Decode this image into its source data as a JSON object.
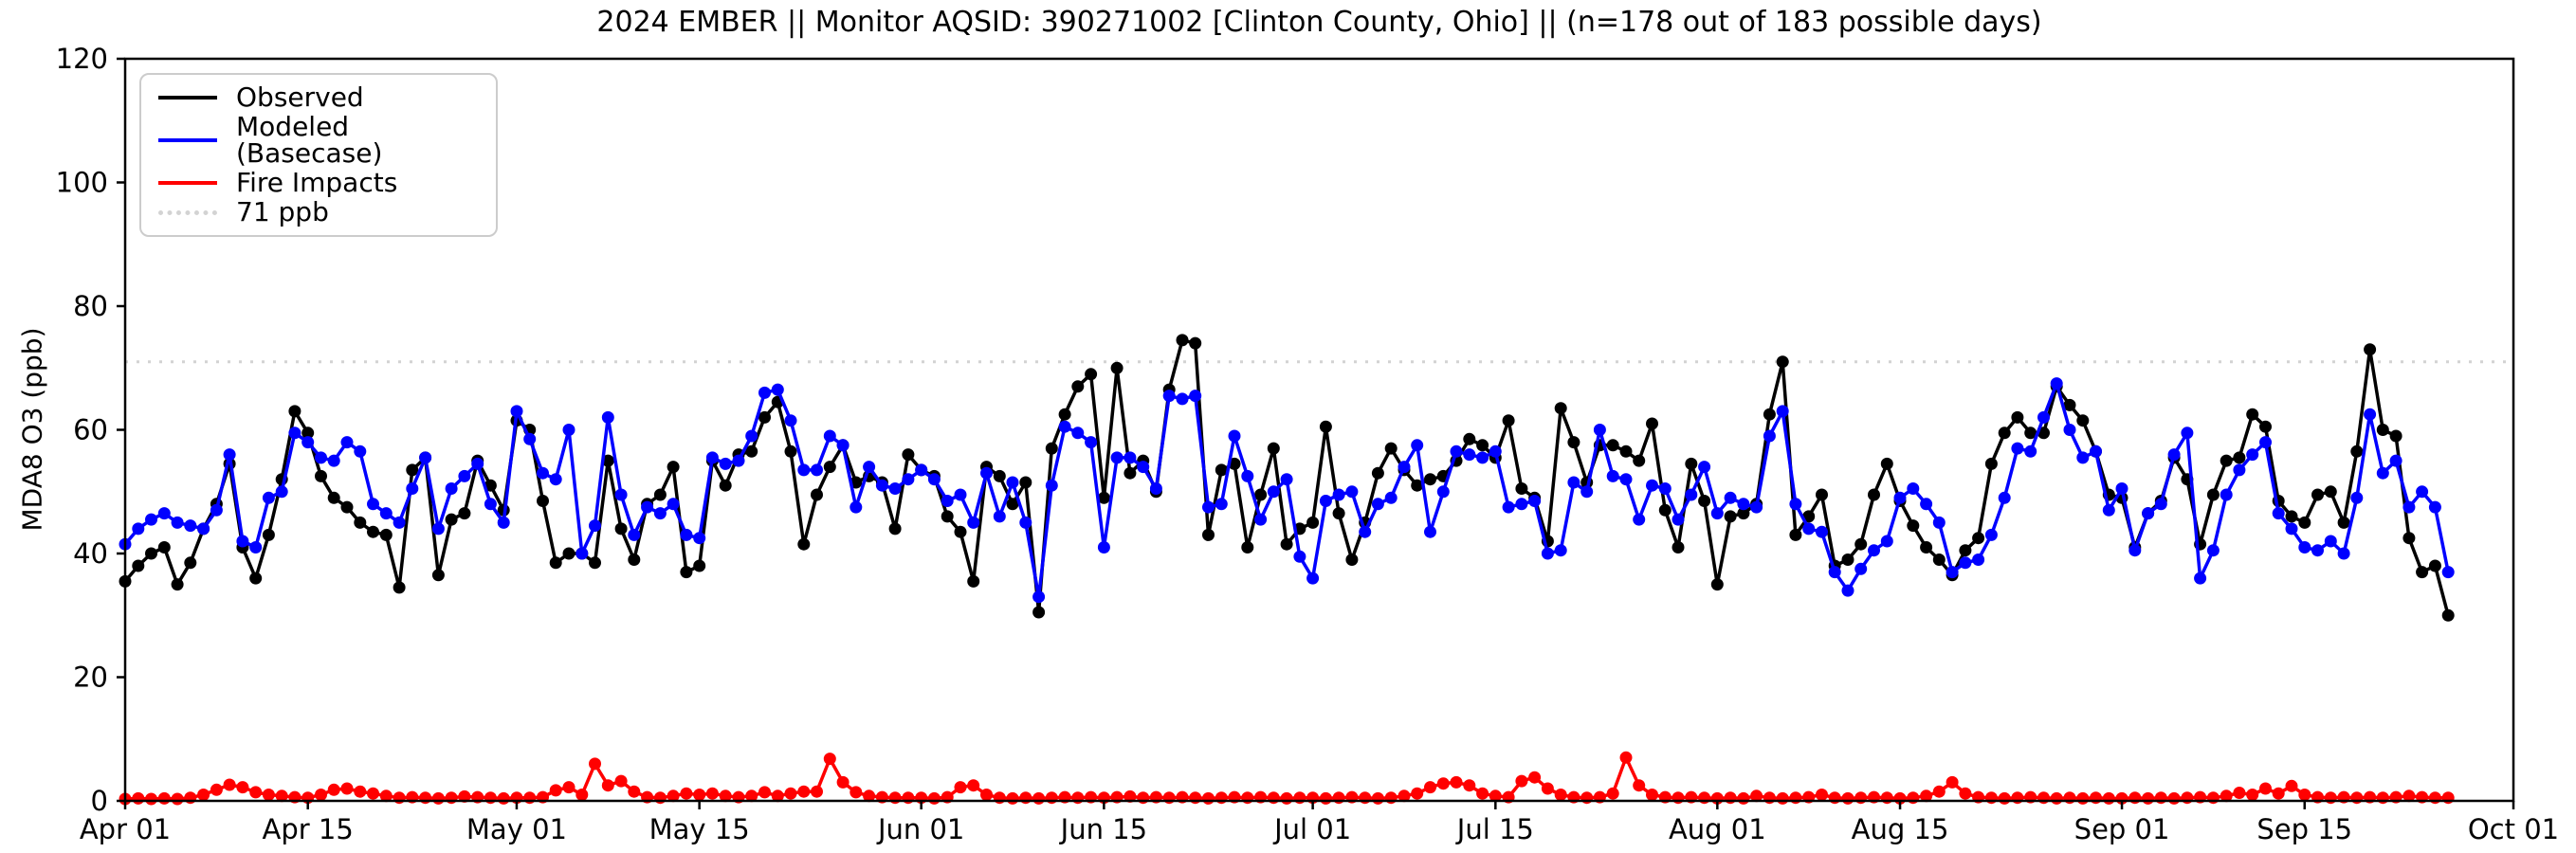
{
  "colors": {
    "observed": "#000000",
    "modeled": "#0000ff",
    "fire": "#ff0000",
    "reference": "#d3d3d3",
    "legend_border": "#cccccc"
  },
  "axes": {
    "y_label": "MDA8 O3 (ppb)",
    "y_ticks": [
      0,
      20,
      40,
      60,
      80,
      100,
      120
    ],
    "y_range": [
      0,
      120
    ],
    "x_tick_labels": [
      "Apr 01",
      "Apr 15",
      "May 01",
      "May 15",
      "Jun 01",
      "Jun 15",
      "Jul 01",
      "Jul 15",
      "Aug 01",
      "Aug 15",
      "Sep 01",
      "Sep 15",
      "Oct 01"
    ],
    "x_tick_days": [
      0,
      14,
      30,
      44,
      61,
      75,
      91,
      105,
      122,
      136,
      153,
      167,
      183
    ],
    "x_total_days": 183
  },
  "legend": {
    "items": [
      {
        "label": "Observed",
        "color": "#000000",
        "style": "solid"
      },
      {
        "label": "Modeled (Basecase)",
        "color": "#0000ff",
        "style": "solid"
      },
      {
        "label": "Fire Impacts",
        "color": "#ff0000",
        "style": "solid"
      },
      {
        "label": "71 ppb",
        "color": "#d3d3d3",
        "style": "dotted"
      }
    ]
  },
  "chart_data": {
    "type": "line",
    "title": "2024 EMBER || Monitor AQSID: 390271002 [Clinton County, Ohio] || (n=178 out of 183 possible days)",
    "xlabel": "",
    "ylabel": "MDA8 O3 (ppb)",
    "ylim": [
      0,
      120
    ],
    "grid": false,
    "legend_position": "upper left",
    "reference_line": {
      "label": "71 ppb",
      "value": 71,
      "color": "#d3d3d3",
      "style": "dotted"
    },
    "x_dates": [
      "4/1",
      "4/2",
      "4/3",
      "4/4",
      "4/5",
      "4/6",
      "4/7",
      "4/8",
      "4/9",
      "4/10",
      "4/11",
      "4/12",
      "4/13",
      "4/14",
      "4/15",
      "4/16",
      "4/17",
      "4/18",
      "4/19",
      "4/20",
      "4/21",
      "4/22",
      "4/23",
      "4/24",
      "4/25",
      "4/26",
      "4/27",
      "4/28",
      "4/29",
      "4/30",
      "5/1",
      "5/2",
      "5/3",
      "5/4",
      "5/5",
      "5/6",
      "5/7",
      "5/8",
      "5/9",
      "5/10",
      "5/11",
      "5/12",
      "5/13",
      "5/14",
      "5/15",
      "5/16",
      "5/17",
      "5/18",
      "5/19",
      "5/20",
      "5/21",
      "5/22",
      "5/23",
      "5/24",
      "5/25",
      "5/26",
      "5/27",
      "5/28",
      "5/29",
      "5/30",
      "5/31",
      "6/1",
      "6/2",
      "6/3",
      "6/4",
      "6/5",
      "6/6",
      "6/7",
      "6/8",
      "6/9",
      "6/10",
      "6/11",
      "6/12",
      "6/13",
      "6/14",
      "6/15",
      "6/16",
      "6/17",
      "6/18",
      "6/19",
      "6/20",
      "6/21",
      "6/22",
      "6/23",
      "6/24",
      "6/25",
      "6/26",
      "6/27",
      "6/28",
      "6/29",
      "6/30",
      "7/1",
      "7/2",
      "7/3",
      "7/4",
      "7/5",
      "7/6",
      "7/7",
      "7/8",
      "7/9",
      "7/10",
      "7/11",
      "7/12",
      "7/13",
      "7/14",
      "7/15",
      "7/16",
      "7/17",
      "7/18",
      "7/19",
      "7/20",
      "7/21",
      "7/22",
      "7/23",
      "7/24",
      "7/25",
      "7/26",
      "7/27",
      "7/28",
      "7/29",
      "7/30",
      "7/31",
      "8/1",
      "8/2",
      "8/3",
      "8/4",
      "8/5",
      "8/6",
      "8/7",
      "8/8",
      "8/9",
      "8/10",
      "8/11",
      "8/12",
      "8/13",
      "8/14",
      "8/15",
      "8/16",
      "8/17",
      "8/18",
      "8/19",
      "8/20",
      "8/21",
      "8/22",
      "8/23",
      "8/24",
      "8/25",
      "8/26",
      "8/27",
      "8/28",
      "8/29",
      "8/30",
      "8/31",
      "9/1",
      "9/2",
      "9/3",
      "9/4",
      "9/5",
      "9/6",
      "9/7",
      "9/8",
      "9/9",
      "9/10",
      "9/11",
      "9/12",
      "9/13",
      "9/14",
      "9/15",
      "9/16",
      "9/17",
      "9/18",
      "9/19",
      "9/20",
      "9/21",
      "9/22",
      "9/23",
      "9/24",
      "9/25",
      "9/26"
    ],
    "series": [
      {
        "name": "Observed",
        "color": "#000000",
        "marker": "circle",
        "values": [
          35.5,
          38,
          40,
          41,
          35,
          38.5,
          44,
          48,
          54.5,
          41,
          36,
          43,
          52,
          63,
          59.5,
          52.5,
          49,
          47.5,
          45,
          43.5,
          43,
          34.5,
          53.5,
          55.5,
          36.5,
          45.5,
          46.5,
          55,
          51,
          47,
          61.5,
          60,
          48.5,
          38.5,
          40,
          40,
          38.5,
          55,
          44,
          39,
          48,
          49.5,
          54,
          37,
          38,
          55,
          51,
          56,
          56.5,
          62,
          64.5,
          56.5,
          41.5,
          49.5,
          54,
          57.5,
          51.5,
          52.5,
          51.5,
          44,
          56,
          53.5,
          52.5,
          46,
          43.5,
          35.5,
          54,
          52.5,
          48,
          51.5,
          30.5,
          57,
          62.5,
          67,
          69,
          49,
          70,
          53,
          55,
          50,
          66.5,
          74.5,
          74,
          43,
          53.5,
          54.5,
          41,
          49.5,
          57,
          41.5,
          44,
          45,
          60.5,
          46.5,
          39,
          45,
          53,
          57,
          53.5,
          51,
          52,
          52.5,
          55,
          58.5,
          57.5,
          55.5,
          61.5,
          50.5,
          49,
          42,
          63.5,
          58,
          51.5,
          57.5,
          57.5,
          56.5,
          55,
          61,
          47,
          41,
          54.5,
          48.5,
          35,
          46,
          46.5,
          48,
          62.5,
          71,
          43,
          46,
          49.5,
          38,
          39,
          41.5,
          49.5,
          54.5,
          48.5,
          44.5,
          41,
          39,
          36.5,
          40.5,
          42.5,
          54.5,
          59.5,
          62,
          59.5,
          59.5,
          67,
          64,
          61.5,
          56.5,
          49.5,
          49,
          41,
          46.5,
          48.5,
          55.5,
          52,
          41.5,
          49.5,
          55,
          55.5,
          62.5,
          60.5,
          48.5,
          46,
          45,
          49.5,
          50,
          45,
          56.5,
          73,
          60,
          59,
          42.5,
          37,
          38,
          30
        ]
      },
      {
        "name": "Modeled (Basecase)",
        "color": "#0000ff",
        "marker": "circle",
        "values": [
          41.5,
          44,
          45.5,
          46.5,
          45,
          44.5,
          44,
          47,
          56,
          42,
          41,
          49,
          50,
          59.5,
          58,
          55.5,
          55,
          58,
          56.5,
          48,
          46.5,
          45,
          50.5,
          55.5,
          44,
          50.5,
          52.5,
          54.5,
          48,
          45,
          63,
          58.5,
          53,
          52,
          60,
          40,
          44.5,
          62,
          49.5,
          43,
          47.5,
          46.5,
          48,
          43,
          42.5,
          55.5,
          54.5,
          55,
          59,
          66,
          66.5,
          61.5,
          53.5,
          53.5,
          59,
          57.5,
          47.5,
          54,
          51,
          50.5,
          52,
          53.5,
          52,
          48.5,
          49.5,
          45,
          53,
          46,
          51.5,
          45,
          33,
          51,
          60.5,
          59.5,
          58,
          41,
          55.5,
          55.5,
          54,
          50.5,
          65.5,
          65,
          65.5,
          47.5,
          48,
          59,
          52.5,
          45.5,
          50,
          52,
          39.5,
          36,
          48.5,
          49.5,
          50,
          43.5,
          48,
          49,
          54,
          57.5,
          43.5,
          50,
          56.5,
          56,
          55.5,
          56.5,
          47.5,
          48,
          48.5,
          40,
          40.5,
          51.5,
          50,
          60,
          52.5,
          52,
          45.5,
          51,
          50.5,
          45.5,
          49.5,
          54,
          46.5,
          49,
          48,
          47.5,
          59,
          63,
          48,
          44,
          43.5,
          37,
          34,
          37.5,
          40.5,
          42,
          49,
          50.5,
          48,
          45,
          37,
          38.5,
          39,
          43,
          49,
          57,
          56.5,
          62,
          67.5,
          60,
          55.5,
          56.5,
          47,
          50.5,
          40.5,
          46.5,
          48,
          56,
          59.5,
          36,
          40.5,
          49.5,
          53.5,
          56,
          58,
          46.5,
          44,
          41,
          40.5,
          42,
          40,
          49,
          62.5,
          53,
          55,
          47.5,
          50,
          47.5,
          37
        ]
      },
      {
        "name": "Fire Impacts",
        "color": "#ff0000",
        "marker": "circle",
        "values": [
          0.3,
          0.4,
          0.3,
          0.4,
          0.3,
          0.5,
          1,
          1.8,
          2.6,
          2.2,
          1.4,
          1,
          0.8,
          0.6,
          0.5,
          1,
          1.8,
          2,
          1.5,
          1.2,
          0.8,
          0.5,
          0.6,
          0.5,
          0.4,
          0.5,
          0.7,
          0.6,
          0.5,
          0.4,
          0.5,
          0.5,
          0.6,
          1.7,
          2.2,
          1,
          6,
          2.5,
          3.2,
          1.5,
          0.6,
          0.5,
          0.8,
          1.2,
          1,
          1.2,
          0.8,
          0.6,
          0.8,
          1.4,
          0.8,
          1.2,
          1.5,
          1.5,
          6.8,
          3,
          1.4,
          0.8,
          0.6,
          0.5,
          0.5,
          0.5,
          0.4,
          0.6,
          2.2,
          2.5,
          1,
          0.5,
          0.4,
          0.5,
          0.4,
          0.5,
          0.6,
          0.5,
          0.6,
          0.5,
          0.6,
          0.7,
          0.5,
          0.6,
          0.5,
          0.6,
          0.5,
          0.4,
          0.5,
          0.6,
          0.5,
          0.6,
          0.5,
          0.4,
          0.5,
          0.5,
          0.4,
          0.5,
          0.6,
          0.5,
          0.4,
          0.5,
          0.8,
          1.2,
          2.2,
          2.8,
          3,
          2.5,
          1.2,
          0.8,
          0.6,
          3.2,
          3.8,
          2,
          1,
          0.6,
          0.5,
          0.6,
          1.2,
          7,
          2.5,
          1,
          0.6,
          0.5,
          0.6,
          0.5,
          0.4,
          0.5,
          0.4,
          0.8,
          0.5,
          0.4,
          0.5,
          0.6,
          1,
          0.5,
          0.4,
          0.5,
          0.6,
          0.5,
          0.4,
          0.5,
          0.8,
          1.5,
          3,
          1.2,
          0.6,
          0.5,
          0.4,
          0.5,
          0.6,
          0.5,
          0.4,
          0.5,
          0.4,
          0.5,
          0.4,
          0.4,
          0.5,
          0.4,
          0.5,
          0.4,
          0.5,
          0.6,
          0.5,
          0.8,
          1.3,
          1,
          2,
          1.2,
          2.4,
          1,
          0.6,
          0.5,
          0.6,
          0.5,
          0.6,
          0.5,
          0.6,
          0.8,
          0.6,
          0.5,
          0.5
        ]
      }
    ]
  }
}
